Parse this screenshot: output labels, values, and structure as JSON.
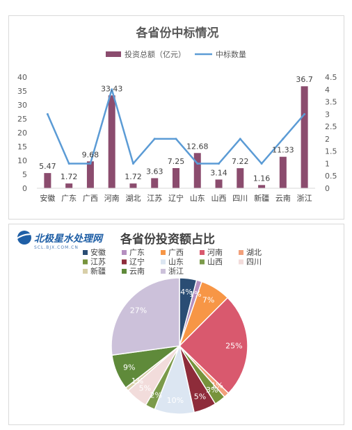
{
  "chart_data": [
    {
      "type": "bar",
      "title": "各省份中标情况",
      "categories": [
        "安徽",
        "广东",
        "广西",
        "河南",
        "湖北",
        "江苏",
        "辽宁",
        "山东",
        "山西",
        "四川",
        "新疆",
        "云南",
        "浙江"
      ],
      "series": [
        {
          "name": "投资总额（亿元）",
          "type": "bar",
          "axis": "left",
          "color": "#8b4c6e",
          "values": [
            5.47,
            1.72,
            9.68,
            33.43,
            1.72,
            3.63,
            7.25,
            12.68,
            3.14,
            7.22,
            1.16,
            11.33,
            36.7
          ],
          "labels": [
            "5.47",
            "1.72",
            "9.68",
            "33.43",
            "1.72",
            "3.63",
            "7.25",
            "12.68",
            "3.14",
            "7.22",
            "1.16",
            "11.33",
            "36.7"
          ]
        },
        {
          "name": "中标数量",
          "type": "line",
          "axis": "right",
          "color": "#5b9bd5",
          "values": [
            3,
            1,
            1,
            4,
            1,
            2,
            2,
            1,
            1,
            2,
            1,
            2,
            3
          ]
        }
      ],
      "y_left": {
        "min": 0,
        "max": 40,
        "ticks": [
          "0",
          "5",
          "10",
          "15",
          "20",
          "25",
          "30",
          "35",
          "40"
        ]
      },
      "y_right": {
        "min": 0,
        "max": 4.5,
        "ticks": [
          "0",
          "0.5",
          "1",
          "1.5",
          "2",
          "2.5",
          "3",
          "3.5",
          "4",
          "4.5"
        ]
      },
      "legend": "top"
    },
    {
      "type": "pie",
      "title": "各省份投资额占比",
      "categories": [
        "安徽",
        "广东",
        "广西",
        "河南",
        "湖北",
        "江苏",
        "辽宁",
        "山东",
        "山西",
        "四川",
        "新疆",
        "云南",
        "浙江"
      ],
      "values": [
        5.47,
        1.72,
        9.68,
        33.43,
        1.72,
        3.63,
        7.25,
        12.68,
        3.14,
        7.22,
        1.16,
        11.33,
        36.7
      ],
      "labels": [
        "4%",
        "1%",
        "7%",
        "25%",
        "1%",
        "3%",
        "5%",
        "10%",
        "2%",
        "5%",
        "1%",
        "9%",
        "27%"
      ],
      "colors": [
        "#2a4d74",
        "#b58fc0",
        "#f79646",
        "#d9596e",
        "#f2a07b",
        "#77933c",
        "#8e2c3a",
        "#dce6f2",
        "#7b9a4a",
        "#f2dcdb",
        "#d8cfa8",
        "#5f8a3a",
        "#ccc1da"
      ],
      "label_colors": [
        "#ffffff",
        "#ffffff",
        "#ffffff",
        "#ffffff",
        "#ffffff",
        "#ffffff",
        "#ffffff",
        "#ffffff",
        "#ffffff",
        "#ffffff",
        "#ffffff",
        "#ffffff",
        "#ffffff"
      ],
      "legend": "top"
    }
  ],
  "logo": {
    "text": "北极星水处理网",
    "subtext": "SCL.BJX.COM.CN"
  }
}
